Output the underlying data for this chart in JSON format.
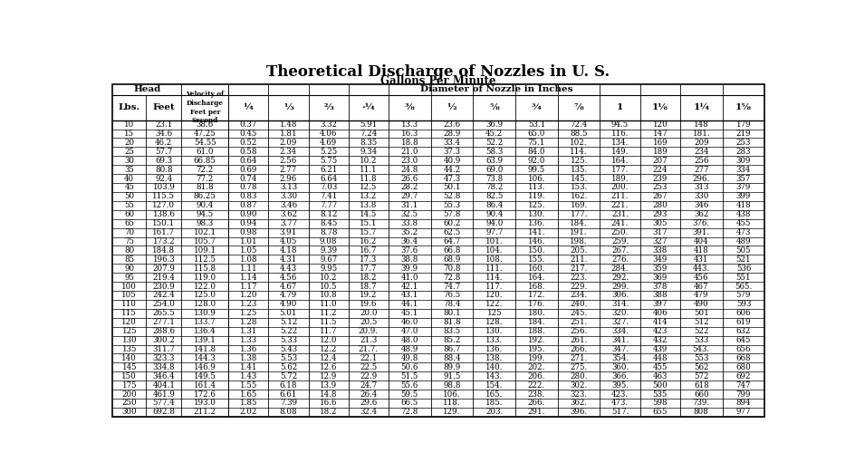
{
  "title": "Theoretical Discharge of Nozzles in U. S.",
  "subtitle": "Gallons Per Minute",
  "rows": [
    [
      "10",
      "23.1",
      "38.6",
      "0.37",
      "1.48",
      "3.32",
      "5.91",
      "13.3",
      "23.6",
      "36.9",
      "53.1",
      "72.4",
      "94.5",
      "120",
      "148",
      "179"
    ],
    [
      "15",
      "34.6",
      "47.25",
      "0.45",
      "1.81",
      "4.06",
      "7.24",
      "16.3",
      "28.9",
      "45.2",
      "65.0",
      "88.5",
      "116.",
      "147",
      "181.",
      "219"
    ],
    [
      "20",
      "46.2",
      "54.55",
      "0.52",
      "2.09",
      "4.69",
      "8.35",
      "18.8",
      "33.4",
      "52.2",
      "75.1",
      "102.",
      "134.",
      "169",
      "209",
      "253"
    ],
    [
      "25",
      "57.7",
      "61.0",
      "0.58",
      "2.34",
      "5.25",
      "9.34",
      "21.0",
      "37.3",
      "58.3",
      "84.0",
      "114.",
      "149.",
      "189",
      "234",
      "283"
    ],
    [
      "30",
      "69.3",
      "66.85",
      "0.64",
      "2.56",
      "5.75",
      "10.2",
      "23.0",
      "40.9",
      "63.9",
      "92.0",
      "125.",
      "164.",
      "207",
      "256",
      "309"
    ],
    [
      "35",
      "80.8",
      "72.2",
      "0.69",
      "2.77",
      "6.21",
      "11.1",
      "24.8",
      "44.2",
      "69.0",
      "99.5",
      "135.",
      "177.",
      "224",
      "277",
      "334"
    ],
    [
      "40",
      "92.4",
      "77.2",
      "0.74",
      "2.96",
      "6.64",
      "11.8",
      "26.6",
      "47.3",
      "73.8",
      "106.",
      "145.",
      "189.",
      "239",
      "296.",
      "357"
    ],
    [
      "45",
      "103.9",
      "81.8",
      "0.78",
      "3.13",
      "7.03",
      "12.5",
      "28.2",
      "50.1",
      "78.2",
      "113.",
      "153.",
      "200.",
      "253",
      "313",
      "379"
    ],
    [
      "50",
      "115.5",
      "86.25",
      "0.83",
      "3.30",
      "7.41",
      "13.2",
      "29.7",
      "52.8",
      "82.5",
      "119.",
      "162.",
      "211.",
      "267",
      "330",
      "399"
    ],
    [
      "55",
      "127.0",
      "90.4",
      "0.87",
      "3.46",
      "7.77",
      "13.8",
      "31.1",
      "55.3",
      "86.4",
      "125.",
      "169.",
      "221.",
      "280",
      "346",
      "418"
    ],
    [
      "60",
      "138.6",
      "94.5",
      "0.90",
      "3.62",
      "8.12",
      "14.5",
      "32.5",
      "57.8",
      "90.4",
      "130.",
      "177.",
      "231.",
      "293",
      "362",
      "438"
    ],
    [
      "65",
      "150.1",
      "98.3",
      "0.94",
      "3.77",
      "8.45",
      "15.1",
      "33.8",
      "60.2",
      "94.0",
      "136.",
      "184.",
      "241.",
      "305",
      "376.",
      "455"
    ],
    [
      "70",
      "161.7",
      "102.1",
      "0.98",
      "3.91",
      "8.78",
      "15.7",
      "35.2",
      "62.5",
      "97.7",
      "141.",
      "191.",
      "250.",
      "317",
      "391.",
      "473"
    ],
    [
      "75",
      "173.2",
      "105.7",
      "1.01",
      "4.05",
      "9.08",
      "16.2",
      "36.4",
      "64.7",
      "101.",
      "146.",
      "198.",
      "259.",
      "327",
      "404",
      "489"
    ],
    [
      "80",
      "184.8",
      "109.1",
      "1.05",
      "4.18",
      "9.39",
      "16.7",
      "37.6",
      "66.8",
      "104.",
      "150.",
      "205.",
      "267.",
      "338",
      "418",
      "505"
    ],
    [
      "85",
      "196.3",
      "112.5",
      "1.08",
      "4.31",
      "9.67",
      "17.3",
      "38.8",
      "68.9",
      "108.",
      "155.",
      "211.",
      "276.",
      "349",
      "431",
      "521"
    ],
    [
      "90",
      "207.9",
      "115.8",
      "1.11",
      "4.43",
      "9.95",
      "17.7",
      "39.9",
      "70.8",
      "111.",
      "160.",
      "217.",
      "284.",
      "359",
      "443.",
      "536"
    ],
    [
      "95",
      "219.4",
      "119.0",
      "1.14",
      "4.56",
      "10.2",
      "18.2",
      "41.0",
      "72.8",
      "114.",
      "164.",
      "223.",
      "292.",
      "369",
      "456",
      "551"
    ],
    [
      "100",
      "230.9",
      "122.0",
      "1.17",
      "4.67",
      "10.5",
      "18.7",
      "42.1",
      "74.7",
      "117.",
      "168.",
      "229.",
      "299.",
      "378",
      "467",
      "565."
    ],
    [
      "105",
      "242.4",
      "125.0",
      "1.20",
      "4.79",
      "10.8",
      "19.2",
      "43.1",
      "76.5",
      "120.",
      "172.",
      "234.",
      "306.",
      "388",
      "479",
      "579"
    ],
    [
      "110",
      "254.0",
      "128.0",
      "1.23",
      "4.90",
      "11.0",
      "19.6",
      "44.1",
      "78.4",
      "122.",
      "176.",
      "240.",
      "314.",
      "397",
      "490",
      "593"
    ],
    [
      "115",
      "265.5",
      "130.9",
      "1.25",
      "5.01",
      "11.2",
      "20.0",
      "45.1",
      "80.1",
      "125",
      "180.",
      "245.",
      "320.",
      "406",
      "501",
      "606"
    ],
    [
      "120",
      "277.1",
      "133.7",
      "1.28",
      "5.12",
      "11.5",
      "20.5",
      "46.0",
      "81.8",
      "128.",
      "184.",
      "251.",
      "327.",
      "414",
      "512",
      "619"
    ],
    [
      "125",
      "288.6",
      "136.4",
      "1.31",
      "5.22",
      "11.7",
      "20.9.",
      "47.0",
      "83.5",
      "130.",
      "188.",
      "256.",
      "334.",
      "423",
      "522",
      "632"
    ],
    [
      "130",
      "300.2",
      "139.1",
      "1.33",
      "5.33",
      "12.0",
      "21.3",
      "48.0",
      "85.2",
      "133.",
      "192.",
      "261.",
      "341.",
      "432",
      "533",
      "645"
    ],
    [
      "135",
      "311.7",
      "141.8",
      "1.36",
      "5.43",
      "12.2",
      "21.7.",
      "48.9",
      "86.7",
      "136.",
      "195.",
      "266.",
      "347.",
      "439",
      "543.",
      "656"
    ],
    [
      "140",
      "323.3",
      "144.3",
      "1.38",
      "5.53",
      "12.4",
      "22.1",
      "49.8",
      "88.4",
      "138.",
      "199.",
      "271.",
      "354.",
      "448",
      "553",
      "668"
    ],
    [
      "145",
      "334.8",
      "146.9",
      "1.41",
      "5.62",
      "12.6",
      "22.5",
      "50.6",
      "89.9",
      "140.",
      "202.",
      "275.",
      "360.",
      "455",
      "562",
      "680"
    ],
    [
      "150",
      "346.4",
      "149.5",
      "1.43",
      "5.72",
      "12.9",
      "22.9",
      "51.5",
      "91.5",
      "143.",
      "206.",
      "280.",
      "366.",
      "463",
      "572",
      "692"
    ],
    [
      "175",
      "404.1",
      "161.4",
      "1.55",
      "6.18",
      "13.9",
      "24.7",
      "55.6",
      "98.8",
      "154.",
      "222.",
      "302.",
      "395.",
      "500",
      "618",
      "747"
    ],
    [
      "200",
      "461.9",
      "172.6",
      "1.65",
      "6.61",
      "14.8",
      "26.4",
      "59.5",
      "106.",
      "165.",
      "238.",
      "323.",
      "423.",
      "535",
      "660",
      "799"
    ],
    [
      "250",
      "577.4",
      "193.0",
      "1.85",
      "7.39",
      "16.6",
      "29.6",
      "66.5",
      "118.",
      "185.",
      "266.",
      "362.",
      "473.",
      "598",
      "739.",
      "894"
    ],
    [
      "300",
      "692.8",
      "211.2",
      "2.02",
      "8.08",
      "18.2",
      "32.4",
      "72.8",
      "129.",
      "203.",
      "291.",
      "396.",
      "517.",
      "655",
      "808",
      "977"
    ]
  ],
  "col_labels": [
    "¼",
    "⅓",
    "⅔",
    "·¼",
    "⅜",
    "½",
    "⅝",
    "¾",
    "⅞",
    "1",
    "1⅛",
    "1¼",
    "1⅝"
  ],
  "background_color": "#ffffff",
  "text_color": "#000000"
}
